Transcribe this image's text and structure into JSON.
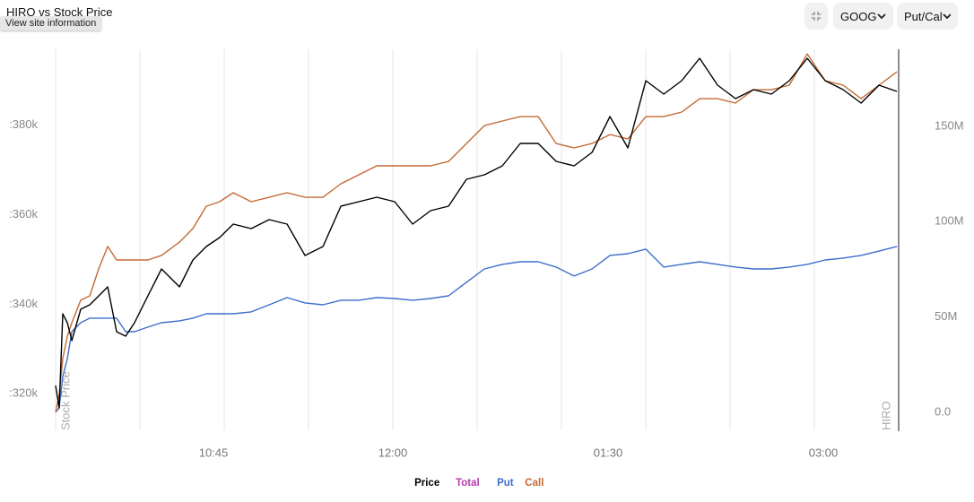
{
  "browser_tooltip": "View site information",
  "controls": {
    "symbol": "GOOG",
    "mode": "Put/Cal"
  },
  "chart_data": {
    "type": "line",
    "title": "HIRO vs Stock Price",
    "annotations": [
      "Stock Price",
      "HIRO"
    ],
    "x": [
      9,
      10.5,
      12,
      13.9,
      15.8,
      19.5,
      23.3,
      27,
      30.8,
      34.5,
      38.3,
      42,
      47.6,
      53.3,
      60.8,
      66.4,
      72,
      77.6,
      83.3,
      90.8,
      98.3,
      105.8,
      113.3,
      120.8,
      128.3,
      135.8,
      143.3,
      150.8,
      158.3,
      165.8,
      173.3,
      180.8,
      188.3,
      195.8,
      203.3,
      210.8,
      218.3,
      225.8,
      233.3,
      240.8,
      248.3,
      255.8,
      263.3,
      270.8,
      278.3,
      285.8,
      293.3,
      300.8,
      308.3,
      315.8,
      323.3,
      330.8,
      338.3,
      345.8,
      353.3,
      360.8
    ],
    "xlim": [
      9,
      361.5
    ],
    "xticks": [
      {
        "value": 75,
        "label": "10:45"
      },
      {
        "value": 150,
        "label": "12:00"
      },
      {
        "value": 240,
        "label": "01:30"
      },
      {
        "value": 330,
        "label": "03:00"
      }
    ],
    "xgrid": [
      9,
      44.25,
      79.5,
      114.75,
      150,
      185.25,
      220.5,
      255.75,
      291,
      326.25,
      361.5
    ],
    "ylim": [
      311800,
      397000
    ],
    "yticks": [
      {
        "value": 380000,
        "label": ":380k"
      },
      {
        "value": 360000,
        "label": ":360k"
      },
      {
        "value": 340000,
        "label": ":340k"
      },
      {
        "value": 320000,
        "label": ":320k"
      }
    ],
    "y2lim": [
      -9.4,
      190.4
    ],
    "y2ticks": [
      {
        "value": 150,
        "label": "150M"
      },
      {
        "value": 100,
        "label": "100M"
      },
      {
        "value": 50,
        "label": "50M"
      },
      {
        "value": 0,
        "label": "0.0"
      }
    ],
    "series": [
      {
        "name": "Price",
        "color": "#000000",
        "values": [
          321810,
          316800,
          337850,
          335850,
          331840,
          338860,
          339860,
          341860,
          343870,
          333840,
          332840,
          335850,
          341860,
          347880,
          343870,
          349880,
          352890,
          354900,
          357900,
          356900,
          358910,
          357900,
          350890,
          352890,
          361910,
          362920,
          363920,
          362920,
          357900,
          360910,
          361910,
          367930,
          368930,
          370940,
          375950,
          375950,
          371940,
          370940,
          373940,
          381960,
          374950,
          389980,
          386980,
          389980,
          395000,
          388980,
          385970,
          387980,
          386980,
          389980,
          395000,
          389980,
          387980,
          384970,
          388980,
          387580
        ]
      },
      {
        "name": "Total",
        "color": "#b43cae",
        "values": [
          null,
          null,
          null,
          null,
          null,
          null,
          null,
          null,
          null,
          null,
          null,
          null,
          null,
          null,
          null,
          null,
          null,
          null,
          null,
          null,
          null,
          null,
          null,
          null,
          null,
          null,
          null,
          null,
          null,
          null,
          null,
          null,
          null,
          null,
          null,
          null,
          null,
          null,
          null,
          null,
          null,
          null,
          null,
          null,
          null,
          null,
          null,
          null,
          null,
          null,
          null,
          null,
          null,
          null,
          null,
          null
        ],
        "axis": "y2"
      },
      {
        "name": "Put",
        "color": "#3d6ecb",
        "axis": "y2",
        "values": [
          0.0,
          2.4,
          18.8,
          28.2,
          42.3,
          47.0,
          49.4,
          49.4,
          49.4,
          49.4,
          42.3,
          42.3,
          44.7,
          47.0,
          48.0,
          49.4,
          51.7,
          51.7,
          51.7,
          52.7,
          56.4,
          60.2,
          57.4,
          56.4,
          58.8,
          58.8,
          60.2,
          59.7,
          58.8,
          59.7,
          61.1,
          68.2,
          75.2,
          77.6,
          79.0,
          79.0,
          76.2,
          71.5,
          75.2,
          82.3,
          83.2,
          85.6,
          76.2,
          77.6,
          79.0,
          77.6,
          76.2,
          75.2,
          75.2,
          76.2,
          77.6,
          79.9,
          80.9,
          82.3,
          84.6,
          87.0
        ]
      },
      {
        "name": "Call",
        "color": "#c46a35",
        "axis": "y2",
        "values": [
          0.0,
          9.4,
          28.2,
          40.0,
          47.0,
          58.8,
          61.1,
          75.2,
          87.0,
          79.9,
          79.9,
          79.9,
          79.9,
          82.3,
          89.3,
          96.4,
          108.1,
          110.5,
          115.2,
          110.5,
          112.8,
          115.2,
          112.8,
          112.8,
          119.9,
          124.6,
          129.3,
          129.3,
          129.3,
          129.3,
          131.6,
          141.0,
          150.4,
          152.8,
          155.1,
          155.1,
          141.0,
          138.7,
          141.0,
          145.7,
          143.4,
          155.1,
          155.1,
          157.5,
          164.5,
          164.5,
          162.2,
          169.2,
          169.2,
          171.6,
          188.0,
          173.9,
          171.6,
          164.5,
          171.6,
          178.6
        ]
      }
    ]
  }
}
